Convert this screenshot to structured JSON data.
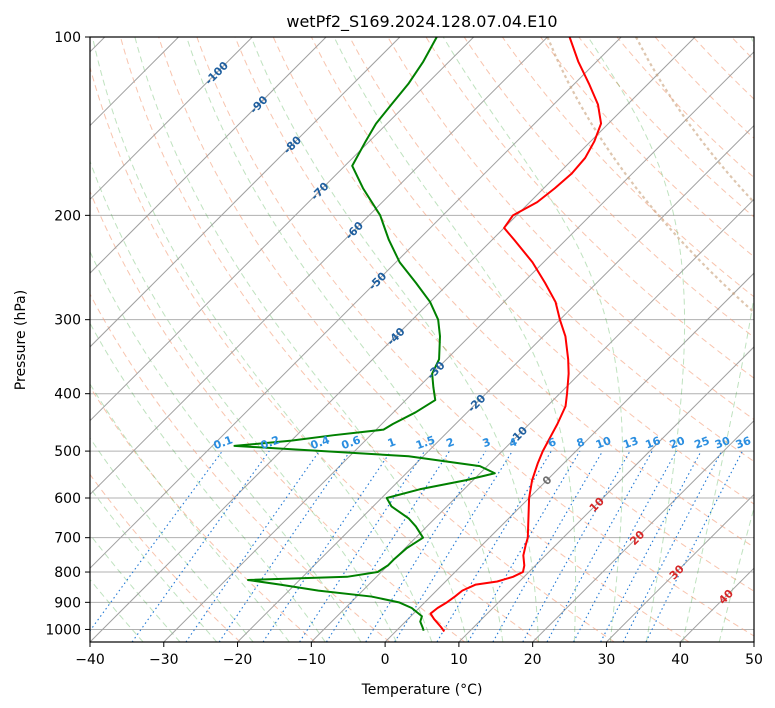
{
  "chart_data": {
    "type": "line",
    "title": "wetPf2_S169.2024.128.07.04.E10",
    "xlabel": "Temperature (°C)",
    "ylabel": "Pressure (hPa)",
    "xlim": [
      -40,
      50
    ],
    "ylim": [
      1050,
      100
    ],
    "y_scale": "log",
    "skew": "skew-T log-P",
    "grid": true,
    "x_ticks": [
      -40,
      -30,
      -20,
      -10,
      0,
      10,
      20,
      30,
      40,
      50
    ],
    "y_ticks": [
      100,
      200,
      300,
      400,
      500,
      600,
      700,
      800,
      900,
      1000
    ],
    "series": [
      {
        "color": "#ff0000",
        "role": "temperature",
        "points": [
          [
            1008,
            6.6
          ],
          [
            990,
            5.5
          ],
          [
            960,
            3.5
          ],
          [
            940,
            2.3
          ],
          [
            920,
            2.5
          ],
          [
            900,
            3.0
          ],
          [
            880,
            3.3
          ],
          [
            860,
            3.5
          ],
          [
            840,
            4.5
          ],
          [
            830,
            7.0
          ],
          [
            815,
            8.5
          ],
          [
            800,
            9.2
          ],
          [
            780,
            8.5
          ],
          [
            750,
            7.0
          ],
          [
            720,
            5.9
          ],
          [
            700,
            5.2
          ],
          [
            650,
            2.7
          ],
          [
            600,
            0.0
          ],
          [
            560,
            -2.0
          ],
          [
            525,
            -3.5
          ],
          [
            500,
            -4.5
          ],
          [
            470,
            -5.5
          ],
          [
            450,
            -6.2
          ],
          [
            420,
            -7.5
          ],
          [
            400,
            -9.0
          ],
          [
            370,
            -11.5
          ],
          [
            350,
            -13.5
          ],
          [
            320,
            -17.0
          ],
          [
            300,
            -20.0
          ],
          [
            280,
            -23.0
          ],
          [
            260,
            -27.0
          ],
          [
            240,
            -31.5
          ],
          [
            220,
            -37.0
          ],
          [
            210,
            -40.0
          ],
          [
            200,
            -40.5
          ],
          [
            190,
            -39.0
          ],
          [
            180,
            -38.5
          ],
          [
            170,
            -38.2
          ],
          [
            160,
            -38.5
          ],
          [
            150,
            -39.5
          ],
          [
            140,
            -41.0
          ],
          [
            130,
            -44.0
          ],
          [
            120,
            -48.0
          ],
          [
            110,
            -52.5
          ],
          [
            100,
            -57.0
          ]
        ]
      },
      {
        "color": "#008000",
        "role": "dewpoint",
        "points": [
          [
            1005,
            3.7
          ],
          [
            990,
            3.0
          ],
          [
            970,
            2.0
          ],
          [
            950,
            1.5
          ],
          [
            920,
            -1.0
          ],
          [
            900,
            -3.5
          ],
          [
            880,
            -8.0
          ],
          [
            860,
            -16.0
          ],
          [
            840,
            -22.0
          ],
          [
            825,
            -27.0
          ],
          [
            815,
            -14.0
          ],
          [
            800,
            -10.5
          ],
          [
            780,
            -10.0
          ],
          [
            760,
            -10.0
          ],
          [
            730,
            -9.8
          ],
          [
            700,
            -9.0
          ],
          [
            670,
            -11.5
          ],
          [
            650,
            -13.5
          ],
          [
            620,
            -17.5
          ],
          [
            600,
            -19.3
          ],
          [
            580,
            -16.0
          ],
          [
            560,
            -11.0
          ],
          [
            545,
            -8.0
          ],
          [
            530,
            -11.0
          ],
          [
            510,
            -22.0
          ],
          [
            490,
            -47.0
          ],
          [
            480,
            -40.0
          ],
          [
            470,
            -35.0
          ],
          [
            460,
            -29.0
          ],
          [
            450,
            -28.5
          ],
          [
            430,
            -27.0
          ],
          [
            410,
            -26.0
          ],
          [
            390,
            -28.0
          ],
          [
            370,
            -30.0
          ],
          [
            350,
            -31.0
          ],
          [
            320,
            -34.0
          ],
          [
            300,
            -36.5
          ],
          [
            280,
            -40.0
          ],
          [
            260,
            -44.5
          ],
          [
            240,
            -49.5
          ],
          [
            220,
            -54.0
          ],
          [
            200,
            -58.5
          ],
          [
            180,
            -64.5
          ],
          [
            165,
            -69.0
          ],
          [
            150,
            -70.5
          ],
          [
            140,
            -71.5
          ],
          [
            130,
            -72.0
          ],
          [
            120,
            -72.5
          ],
          [
            110,
            -73.5
          ],
          [
            100,
            -75.0
          ]
        ]
      }
    ],
    "isotherm_labels": [
      "-100",
      "-90",
      "-80",
      "-70",
      "-60",
      "-50",
      "-40",
      "-30",
      "-20",
      "-10",
      "0",
      "10",
      "20",
      "30",
      "40"
    ],
    "mixing_ratio_labels": [
      "0.1",
      "0.2",
      "0.4",
      "0.6",
      "1",
      "1.5",
      "2",
      "3",
      "4",
      "6",
      "8",
      "10",
      "13",
      "16",
      "20",
      "25",
      "30",
      "36"
    ]
  }
}
